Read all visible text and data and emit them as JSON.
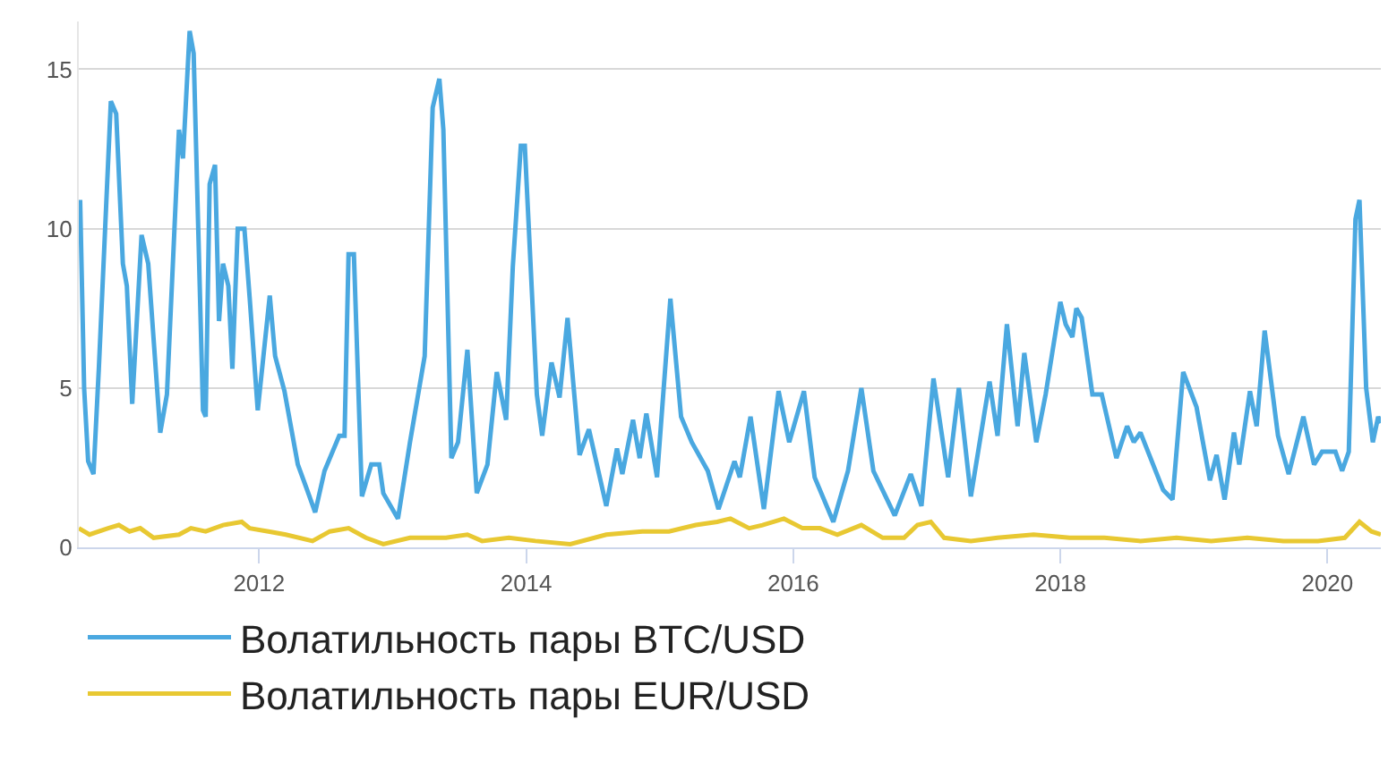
{
  "chart_data": {
    "type": "line",
    "series": [
      {
        "name": "Волатильность пары BTC/USD",
        "color": "#4aa8e0",
        "x": [
          2010.66,
          2010.69,
          2010.72,
          2010.76,
          2010.8,
          2010.89,
          2010.93,
          2010.98,
          2011.01,
          2011.05,
          2011.12,
          2011.17,
          2011.26,
          2011.31,
          2011.4,
          2011.43,
          2011.48,
          2011.51,
          2011.58,
          2011.6,
          2011.63,
          2011.67,
          2011.7,
          2011.73,
          2011.77,
          2011.8,
          2011.84,
          2011.89,
          2011.93,
          2011.99,
          2012.08,
          2012.12,
          2012.19,
          2012.29,
          2012.36,
          2012.42,
          2012.49,
          2012.6,
          2012.64,
          2012.67,
          2012.71,
          2012.77,
          2012.84,
          2012.9,
          2012.93,
          2013.04,
          2013.13,
          2013.24,
          2013.3,
          2013.35,
          2013.38,
          2013.44,
          2013.49,
          2013.56,
          2013.63,
          2013.71,
          2013.78,
          2013.85,
          2013.9,
          2013.96,
          2013.99,
          2014.08,
          2014.12,
          2014.19,
          2014.25,
          2014.31,
          2014.4,
          2014.47,
          2014.6,
          2014.68,
          2014.72,
          2014.8,
          2014.85,
          2014.9,
          2014.98,
          2015.08,
          2015.16,
          2015.24,
          2015.36,
          2015.44,
          2015.56,
          2015.6,
          2015.68,
          2015.78,
          2015.89,
          2015.97,
          2016.08,
          2016.16,
          2016.3,
          2016.41,
          2016.51,
          2016.6,
          2016.76,
          2016.88,
          2016.96,
          2017.05,
          2017.16,
          2017.24,
          2017.33,
          2017.47,
          2017.53,
          2017.6,
          2017.68,
          2017.73,
          2017.82,
          2017.89,
          2018.0,
          2018.04,
          2018.09,
          2018.12,
          2018.16,
          2018.24,
          2018.31,
          2018.42,
          2018.5,
          2018.55,
          2018.6,
          2018.77,
          2018.84,
          2018.92,
          2019.02,
          2019.12,
          2019.17,
          2019.23,
          2019.3,
          2019.34,
          2019.42,
          2019.47,
          2019.53,
          2019.63,
          2019.71,
          2019.82,
          2019.9,
          2019.96,
          2020.06,
          2020.11,
          2020.16,
          2020.21,
          2020.24,
          2020.29,
          2020.34,
          2020.38,
          2020.4
        ],
        "values": [
          10.9,
          5.0,
          2.7,
          2.3,
          5.6,
          14.0,
          13.6,
          8.9,
          8.2,
          4.5,
          9.8,
          8.9,
          3.6,
          4.8,
          13.1,
          12.2,
          16.2,
          15.5,
          4.3,
          4.1,
          11.4,
          12.0,
          7.1,
          8.9,
          8.2,
          5.6,
          10.0,
          10.0,
          7.8,
          4.3,
          7.9,
          6.0,
          4.9,
          2.6,
          1.8,
          1.1,
          2.4,
          3.5,
          3.5,
          9.2,
          9.2,
          1.6,
          2.6,
          2.6,
          1.7,
          0.9,
          3.3,
          6.0,
          13.8,
          14.7,
          13.1,
          2.8,
          3.3,
          6.2,
          1.7,
          2.6,
          5.5,
          4.0,
          8.8,
          12.6,
          12.6,
          4.8,
          3.5,
          5.8,
          4.7,
          7.2,
          2.9,
          3.7,
          1.3,
          3.1,
          2.3,
          4.0,
          2.8,
          4.2,
          2.2,
          7.8,
          4.1,
          3.3,
          2.4,
          1.2,
          2.7,
          2.2,
          4.1,
          1.2,
          4.9,
          3.3,
          4.9,
          2.2,
          0.8,
          2.4,
          5.0,
          2.4,
          1.0,
          2.3,
          1.3,
          5.3,
          2.2,
          5.0,
          1.6,
          5.2,
          3.5,
          7.0,
          3.8,
          6.1,
          3.3,
          4.8,
          7.7,
          7.0,
          6.6,
          7.5,
          7.2,
          4.8,
          4.8,
          2.8,
          3.8,
          3.3,
          3.6,
          1.8,
          1.5,
          5.5,
          4.4,
          2.1,
          2.9,
          1.5,
          3.6,
          2.6,
          4.9,
          3.8,
          6.8,
          3.5,
          2.3,
          4.1,
          2.6,
          3.0,
          3.0,
          2.4,
          3.0,
          10.3,
          10.9,
          5.0,
          3.3,
          4.1,
          3.9
        ]
      },
      {
        "name": "Волатильность пары EUR/USD",
        "color": "#e8c832",
        "x": [
          2010.65,
          2010.73,
          2010.87,
          2010.95,
          2011.03,
          2011.11,
          2011.21,
          2011.4,
          2011.49,
          2011.6,
          2011.73,
          2011.87,
          2011.93,
          2012.07,
          2012.2,
          2012.4,
          2012.53,
          2012.67,
          2012.8,
          2012.93,
          2013.13,
          2013.4,
          2013.56,
          2013.67,
          2013.87,
          2014.07,
          2014.33,
          2014.6,
          2014.87,
          2015.07,
          2015.27,
          2015.43,
          2015.53,
          2015.67,
          2015.77,
          2015.93,
          2016.07,
          2016.2,
          2016.33,
          2016.51,
          2016.67,
          2016.83,
          2016.93,
          2017.03,
          2017.13,
          2017.33,
          2017.53,
          2017.8,
          2018.07,
          2018.33,
          2018.6,
          2018.87,
          2019.13,
          2019.4,
          2019.67,
          2019.93,
          2020.13,
          2020.24,
          2020.33,
          2020.4
        ],
        "values": [
          0.6,
          0.4,
          0.6,
          0.7,
          0.5,
          0.6,
          0.3,
          0.4,
          0.6,
          0.5,
          0.7,
          0.8,
          0.6,
          0.5,
          0.4,
          0.2,
          0.5,
          0.6,
          0.3,
          0.1,
          0.3,
          0.3,
          0.4,
          0.2,
          0.3,
          0.2,
          0.1,
          0.4,
          0.5,
          0.5,
          0.7,
          0.8,
          0.9,
          0.6,
          0.7,
          0.9,
          0.6,
          0.6,
          0.4,
          0.7,
          0.3,
          0.3,
          0.7,
          0.8,
          0.3,
          0.2,
          0.3,
          0.4,
          0.3,
          0.3,
          0.2,
          0.3,
          0.2,
          0.3,
          0.2,
          0.2,
          0.3,
          0.8,
          0.5,
          0.4
        ]
      }
    ],
    "xlim": [
      2010.65,
      2020.4
    ],
    "xticks": [
      2012,
      2014,
      2016,
      2018,
      2020
    ],
    "ylim": [
      0,
      16.5
    ],
    "yticks": [
      0,
      5,
      10,
      15
    ],
    "grid": "y",
    "legend": "bottom",
    "marker": "none",
    "line_style": "solid"
  }
}
